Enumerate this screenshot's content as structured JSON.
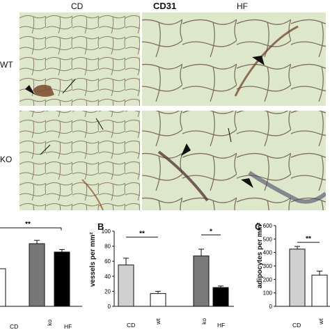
{
  "figure": {
    "stain_title": "CD31",
    "col_labels": [
      "CD",
      "HF"
    ],
    "row_labels": [
      "WT",
      "KO"
    ],
    "colors": {
      "tissue_bg": "#dde7c9",
      "membrane": "#7f6f62",
      "vessel": "#6a3a2a",
      "stain_brown": "#8a4a2a"
    }
  },
  "chart_data": [
    {
      "type": "bar",
      "panel_label": "",
      "categories": [
        "CD wt",
        "CD ko",
        "HF wt",
        "HF ko"
      ],
      "values": [
        null,
        75,
        65,
        null
      ],
      "bar_colors": [
        "#ffffff",
        "#777777",
        "#000000",
        "#ffffff"
      ],
      "significance": [
        "**"
      ],
      "visible_bars": [
        1,
        2
      ]
    },
    {
      "type": "bar",
      "panel_label": "B",
      "ylabel": "vessels per mm²",
      "yticks": [
        0,
        20,
        40,
        60,
        80,
        100
      ],
      "ylim": [
        0,
        100
      ],
      "categories": [
        "CD wt",
        "CD ko",
        "HF wt",
        "HF ko"
      ],
      "values": [
        55,
        17,
        67,
        25
      ],
      "errors": [
        9,
        3,
        9,
        2
      ],
      "bar_colors": [
        "#d0d0d0",
        "#ffffff",
        "#7a7a7a",
        "#000000"
      ],
      "group_labels": [
        "CD",
        "wt",
        "ko",
        "HF"
      ],
      "significance": [
        "**",
        "*"
      ]
    },
    {
      "type": "bar",
      "panel_label": "C",
      "ylabel": "adipocytes per mm²",
      "yticks": [
        0,
        100,
        200,
        300,
        400,
        500,
        600
      ],
      "ylim": [
        0,
        600
      ],
      "categories": [
        "CD",
        "wt"
      ],
      "values": [
        425,
        232
      ],
      "errors": [
        20,
        30
      ],
      "bar_colors": [
        "#d0d0d0",
        "#ffffff"
      ],
      "group_labels": [
        "CD",
        "wt"
      ],
      "significance": [
        "**"
      ]
    }
  ]
}
